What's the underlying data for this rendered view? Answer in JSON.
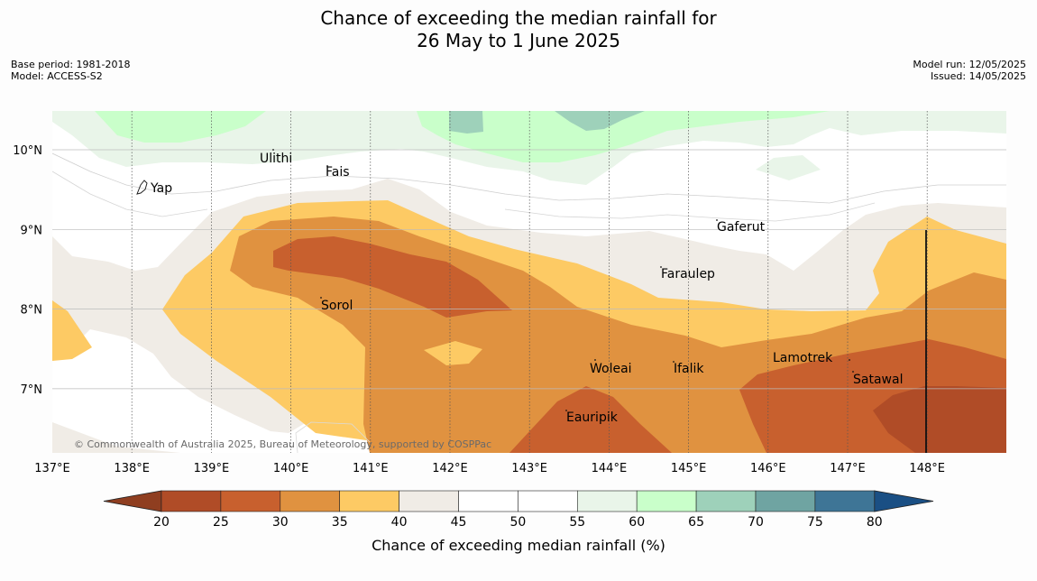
{
  "header": {
    "title_line1": "Chance of exceeding the median rainfall for",
    "title_line2": "26 May to 1 June 2025",
    "base_period": "Base period: 1981-2018",
    "model": "Model: ACCESS-S2",
    "model_run": "Model run: 12/05/2025",
    "issued": "Issued: 14/05/2025"
  },
  "map": {
    "lon_ticks": [
      "137°E",
      "138°E",
      "139°E",
      "140°E",
      "141°E",
      "142°E",
      "143°E",
      "144°E",
      "145°E",
      "146°E",
      "147°E",
      "148°E"
    ],
    "lat_ticks": [
      "10°N",
      "9°N",
      "8°N",
      "7°N"
    ],
    "places": [
      {
        "name": "Ulithi",
        "id": "ulithi"
      },
      {
        "name": "Fais",
        "id": "fais"
      },
      {
        "name": "Yap",
        "id": "yap"
      },
      {
        "name": "Gaferut",
        "id": "gaferut"
      },
      {
        "name": "Faraulep",
        "id": "faraulep"
      },
      {
        "name": "Sorol",
        "id": "sorol"
      },
      {
        "name": "Lamotrek",
        "id": "lamotrek"
      },
      {
        "name": "Woleai",
        "id": "woleai"
      },
      {
        "name": "Ifalik",
        "id": "ifalik"
      },
      {
        "name": "Satawal",
        "id": "satawal"
      },
      {
        "name": "Eauripik",
        "id": "eauripik"
      }
    ],
    "credit": "© Commonwealth of Australia 2025, Bureau of Meteorology, supported by COSPPac"
  },
  "colorbar": {
    "title": "Chance of exceeding median rainfall (%)",
    "ticks": [
      "20",
      "25",
      "30",
      "35",
      "40",
      "45",
      "50",
      "55",
      "60",
      "65",
      "70",
      "75",
      "80"
    ],
    "colors": {
      "under": "#8f3e20",
      "c20_25": "#b04c27",
      "c25_30": "#c8602e",
      "c30_35": "#e09240",
      "c35_40": "#fdca64",
      "c40_45": "#f0ece6",
      "c45_50": "#ffffff",
      "c50_55": "#ffffff",
      "c55_60": "#e9f5e9",
      "c60_65": "#c9ffca",
      "c65_70": "#9ed1ba",
      "c70_75": "#6fa4a2",
      "c75_80": "#3e7596",
      "over": "#1a4f84"
    }
  }
}
